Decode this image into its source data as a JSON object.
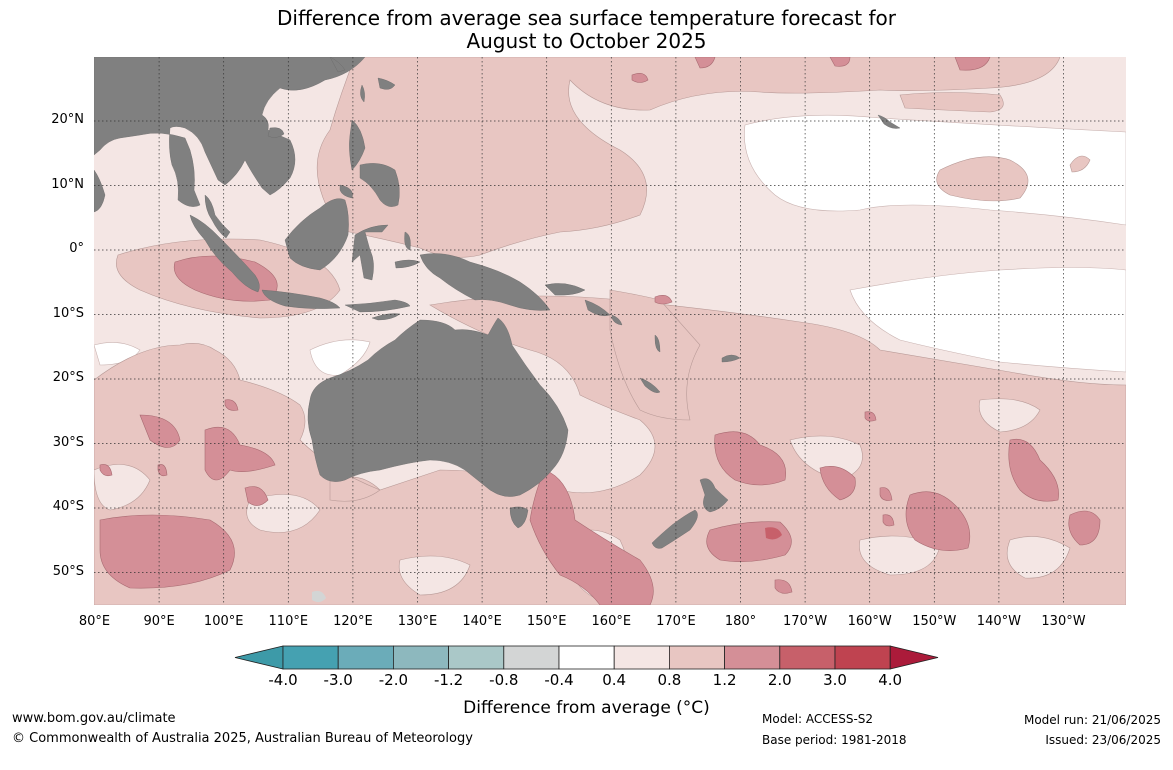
{
  "title_line1": "Difference from average sea surface temperature forecast for",
  "title_line2": "August to October 2025",
  "lat_labels": [
    "20°N",
    "10°N",
    "0°",
    "10°S",
    "20°S",
    "30°S",
    "40°S",
    "50°S"
  ],
  "lon_labels": [
    "80°E",
    "90°E",
    "100°E",
    "110°E",
    "120°E",
    "130°E",
    "140°E",
    "150°E",
    "160°E",
    "170°E",
    "180°",
    "170°W",
    "160°W",
    "150°W",
    "140°W",
    "130°W"
  ],
  "colorbar": {
    "ticks": [
      "-4.0",
      "-3.0",
      "-2.0",
      "-1.2",
      "-0.8",
      "-0.4",
      "0.4",
      "0.8",
      "1.2",
      "2.0",
      "3.0",
      "4.0"
    ],
    "colors": [
      "#3d9aa8",
      "#45a1b1",
      "#6bacb9",
      "#8db8be",
      "#aac8c8",
      "#d3d5d5",
      "#ffffff",
      "#f4e6e4",
      "#e8c6c2",
      "#d48f97",
      "#c7606a",
      "#bf4350",
      "#ab1b3a"
    ],
    "label": "Difference from average (°C)"
  },
  "land_color": "#808080",
  "footer": {
    "website": "www.bom.gov.au/climate",
    "copyright": "© Commonwealth of Australia 2025, Australian Bureau of Meteorology",
    "model": "Model: ACCESS-S2",
    "base_period": "Base period: 1981-2018",
    "model_run": "Model run: 21/06/2025",
    "issued": "Issued: 23/06/2025"
  }
}
